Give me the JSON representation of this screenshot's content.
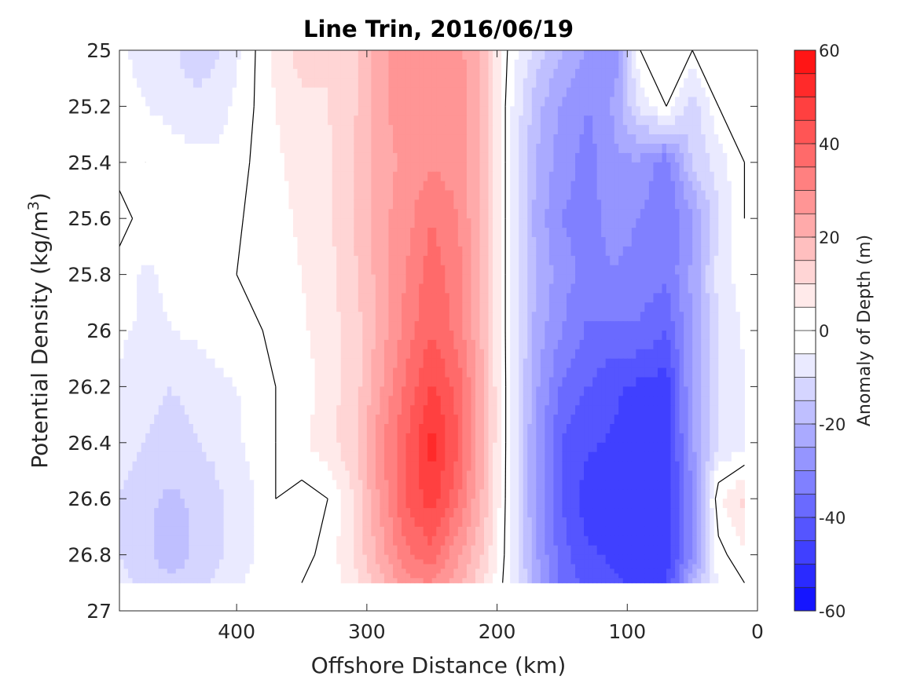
{
  "chart_data": {
    "type": "heatmap",
    "subtype": "filled-contour",
    "title": "Line Trin, 2016/06/19",
    "xlabel": "Offshore Distance (km)",
    "ylabel_main": "Potential Density (kg/m",
    "ylabel_sup": "3",
    "ylabel_close": ")",
    "xlim": [
      490,
      0
    ],
    "x_reversed": true,
    "ylim": [
      25,
      27
    ],
    "y_reversed": true,
    "xticks": [
      400,
      300,
      200,
      100,
      0
    ],
    "yticks": [
      25,
      25.2,
      25.4,
      25.6,
      25.8,
      26,
      26.2,
      26.4,
      26.6,
      26.8,
      27
    ],
    "ytick_labels": [
      "25",
      "25.2",
      "25.4",
      "25.6",
      "25.8",
      "26",
      "26.2",
      "26.4",
      "26.6",
      "26.8",
      "27"
    ],
    "data_y_range": [
      25,
      26.9
    ],
    "zero_contour_lines": true,
    "colorbar": {
      "label": "Anomaly of Depth (m)",
      "range": [
        -60,
        60
      ],
      "levels_step": 5,
      "ticks": [
        -60,
        -40,
        -20,
        0,
        20,
        40,
        60
      ],
      "colormap": "blue-white-red",
      "min_color": "#0000ff",
      "zero_color": "#ffffff",
      "max_color": "#ff0000"
    },
    "x_grid": [
      490,
      470,
      450,
      430,
      410,
      390,
      370,
      350,
      330,
      310,
      290,
      270,
      250,
      230,
      210,
      190,
      170,
      150,
      130,
      110,
      90,
      70,
      50,
      30,
      10
    ],
    "y_grid": [
      25.0,
      25.2,
      25.4,
      25.6,
      25.8,
      26.0,
      26.2,
      26.4,
      26.6,
      26.8,
      26.9
    ],
    "z": [
      [
        -4,
        -7,
        -9,
        -14,
        -10,
        -2,
        7,
        12,
        10,
        14,
        24,
        28,
        30,
        27,
        18,
        -2,
        -12,
        -20,
        -26,
        -30,
        0,
        0,
        0,
        0,
        0
      ],
      [
        -3,
        -5,
        -7,
        -8,
        -6,
        -1,
        5,
        9,
        10,
        14,
        24,
        27,
        30,
        29,
        18,
        -4,
        -18,
        -26,
        -30,
        -24,
        -8,
        0,
        -14,
        0,
        0
      ],
      [
        -2,
        0,
        -2,
        -4,
        -4,
        0,
        4,
        7,
        9,
        15,
        23,
        26,
        29,
        28,
        18,
        -4,
        -20,
        -28,
        -32,
        -26,
        -26,
        -34,
        -14,
        -8,
        0
      ],
      [
        2,
        -2,
        -4,
        -2,
        -3,
        1,
        3,
        6,
        9,
        15,
        23,
        28,
        35,
        30,
        18,
        -4,
        -22,
        -30,
        -32,
        -28,
        -30,
        -34,
        -26,
        -10,
        0
      ],
      [
        -2,
        -6,
        -4,
        -3,
        -1,
        1,
        2,
        5,
        8,
        14,
        22,
        30,
        38,
        32,
        18,
        -4,
        -20,
        -28,
        -32,
        -30,
        -32,
        -34,
        -24,
        -8,
        -2
      ],
      [
        -4,
        -6,
        -5,
        -4,
        -2,
        -1,
        1,
        4,
        8,
        12,
        22,
        32,
        40,
        33,
        18,
        -4,
        -22,
        -30,
        -36,
        -36,
        -36,
        -40,
        -24,
        -10,
        -4
      ],
      [
        -6,
        -8,
        -10,
        -8,
        -6,
        -4,
        0,
        2,
        8,
        12,
        24,
        36,
        46,
        38,
        20,
        -4,
        -24,
        -36,
        -40,
        -44,
        -46,
        -48,
        -24,
        -10,
        -6
      ],
      [
        -6,
        -10,
        -12,
        -10,
        -8,
        -4,
        0,
        4,
        8,
        14,
        28,
        40,
        52,
        40,
        20,
        -4,
        -26,
        -40,
        -44,
        -46,
        -48,
        -48,
        -26,
        -10,
        -8
      ],
      [
        -10,
        -14,
        -16,
        -14,
        -10,
        -6,
        0,
        -2,
        0,
        10,
        26,
        40,
        48,
        36,
        18,
        -4,
        -26,
        -40,
        -48,
        -46,
        -48,
        -50,
        -30,
        4,
        12
      ],
      [
        -10,
        -14,
        -18,
        -14,
        -10,
        -6,
        -1,
        -2,
        2,
        10,
        22,
        34,
        38,
        26,
        14,
        -4,
        -24,
        -38,
        -44,
        -46,
        -48,
        -48,
        -30,
        -2,
        4
      ],
      [
        -8,
        -12,
        -14,
        -12,
        -8,
        -4,
        -1,
        0,
        2,
        8,
        18,
        28,
        30,
        22,
        10,
        -4,
        -22,
        -36,
        -42,
        -44,
        -46,
        -46,
        -20,
        -4,
        0
      ]
    ]
  }
}
